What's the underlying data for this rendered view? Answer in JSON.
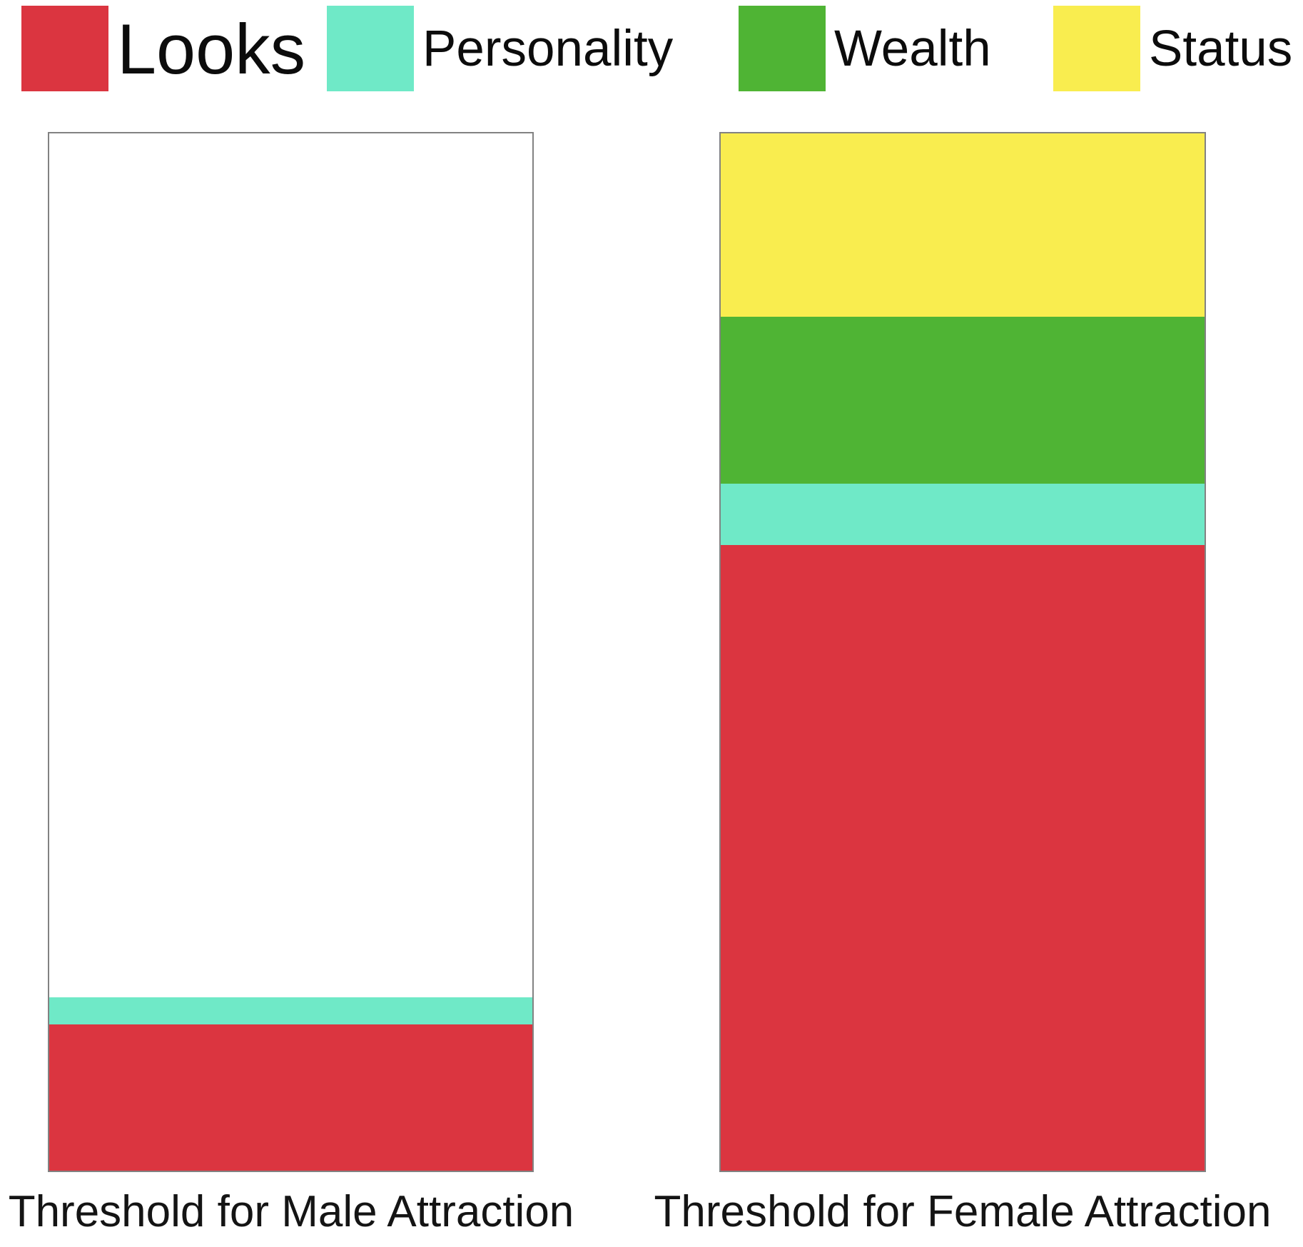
{
  "chart_data": {
    "type": "bar",
    "variant": "stacked-vertical",
    "title": "",
    "legend_position": "top",
    "grid": false,
    "axes_visible": false,
    "units": "percent of full bar height",
    "background_color": "#FFFFFF",
    "bar_outline_color": "#828282",
    "series": [
      {
        "name": "Looks",
        "color": "#DB3540"
      },
      {
        "name": "Personality",
        "color": "#6FE9C7"
      },
      {
        "name": "Wealth",
        "color": "#4FB434"
      },
      {
        "name": "Status",
        "color": "#F9ED4F"
      }
    ],
    "categories": [
      "Threshold for Male Attraction",
      "Threshold for Female Attraction"
    ],
    "stacks": [
      {
        "category": "Threshold for Male Attraction",
        "empty_top_pct": 83.3,
        "segments_bottom_to_top": [
          {
            "series": "Looks",
            "value_pct": 14.1
          },
          {
            "series": "Personality",
            "value_pct": 2.6
          }
        ]
      },
      {
        "category": "Threshold for Female Attraction",
        "empty_top_pct": 0,
        "segments_bottom_to_top": [
          {
            "series": "Looks",
            "value_pct": 60.3
          },
          {
            "series": "Personality",
            "value_pct": 5.9
          },
          {
            "series": "Wealth",
            "value_pct": 16.1
          },
          {
            "series": "Status",
            "value_pct": 17.7
          }
        ]
      }
    ]
  }
}
